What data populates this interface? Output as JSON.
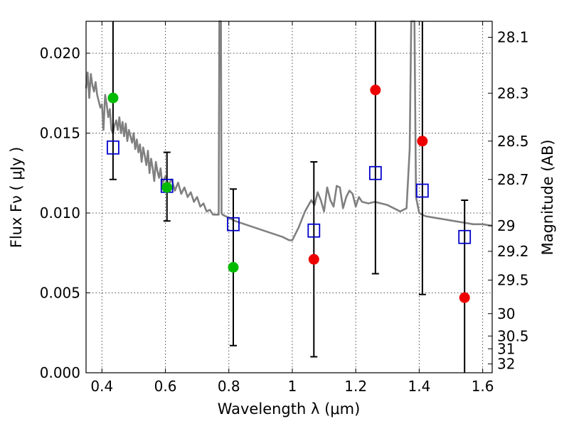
{
  "chart_data": {
    "type": "scatter",
    "title": "",
    "xlabel": "Wavelength  λ (μm)",
    "ylabel": "Flux  Fν  ( μJy )",
    "y2label": "Magnitude (AB)",
    "xlim": [
      0.35,
      1.63
    ],
    "ylim": [
      0.0,
      0.022
    ],
    "grid": true,
    "x_ticks": [
      0.4,
      0.6,
      0.8,
      1.0,
      1.2,
      1.4,
      1.6
    ],
    "x_tick_labels": [
      "0.4",
      "0.6",
      "0.8",
      "1",
      "1.2",
      "1.4",
      "1.6"
    ],
    "y_ticks": [
      0.0,
      0.005,
      0.01,
      0.015,
      0.02
    ],
    "y_tick_labels": [
      "0.000",
      "0.005",
      "0.010",
      "0.015",
      "0.020"
    ],
    "y2_ticks": [
      {
        "label": "28.1",
        "flux": 0.021
      },
      {
        "label": "28.3",
        "flux": 0.0175
      },
      {
        "label": "28.5",
        "flux": 0.0145
      },
      {
        "label": "28.7",
        "flux": 0.0121
      },
      {
        "label": "29",
        "flux": 0.0092
      },
      {
        "label": "29.2",
        "flux": 0.0076
      },
      {
        "label": "29.5",
        "flux": 0.0058
      },
      {
        "label": "30",
        "flux": 0.0037
      },
      {
        "label": "30.5",
        "flux": 0.0023
      },
      {
        "label": "31",
        "flux": 0.0015
      },
      {
        "label": "32",
        "flux": 0.00055
      }
    ],
    "model_spectrum": {
      "color": "#808080",
      "points": [
        [
          0.35,
          0.0178
        ],
        [
          0.355,
          0.0188
        ],
        [
          0.36,
          0.0172
        ],
        [
          0.365,
          0.0187
        ],
        [
          0.37,
          0.018
        ],
        [
          0.375,
          0.0176
        ],
        [
          0.38,
          0.0182
        ],
        [
          0.385,
          0.0174
        ],
        [
          0.39,
          0.017
        ],
        [
          0.395,
          0.0166
        ],
        [
          0.4,
          0.0168
        ],
        [
          0.405,
          0.0152
        ],
        [
          0.41,
          0.0174
        ],
        [
          0.415,
          0.0168
        ],
        [
          0.42,
          0.016
        ],
        [
          0.425,
          0.0165
        ],
        [
          0.43,
          0.0152
        ],
        [
          0.435,
          0.015
        ],
        [
          0.44,
          0.0155
        ],
        [
          0.445,
          0.0158
        ],
        [
          0.45,
          0.0152
        ],
        [
          0.455,
          0.016
        ],
        [
          0.46,
          0.015
        ],
        [
          0.465,
          0.0157
        ],
        [
          0.47,
          0.0148
        ],
        [
          0.475,
          0.0156
        ],
        [
          0.48,
          0.0145
        ],
        [
          0.485,
          0.0152
        ],
        [
          0.49,
          0.0148
        ],
        [
          0.495,
          0.0144
        ],
        [
          0.5,
          0.015
        ],
        [
          0.505,
          0.014
        ],
        [
          0.51,
          0.0146
        ],
        [
          0.515,
          0.0138
        ],
        [
          0.52,
          0.0143
        ],
        [
          0.525,
          0.0132
        ],
        [
          0.53,
          0.0141
        ],
        [
          0.535,
          0.0136
        ],
        [
          0.54,
          0.013
        ],
        [
          0.545,
          0.0139
        ],
        [
          0.55,
          0.0125
        ],
        [
          0.555,
          0.0134
        ],
        [
          0.56,
          0.0128
        ],
        [
          0.565,
          0.012
        ],
        [
          0.57,
          0.0132
        ],
        [
          0.575,
          0.0126
        ],
        [
          0.58,
          0.0122
        ],
        [
          0.585,
          0.0128
        ],
        [
          0.59,
          0.0118
        ],
        [
          0.6,
          0.0123
        ],
        [
          0.61,
          0.0118
        ],
        [
          0.62,
          0.0121
        ],
        [
          0.63,
          0.0114
        ],
        [
          0.64,
          0.0119
        ],
        [
          0.65,
          0.0112
        ],
        [
          0.66,
          0.0116
        ],
        [
          0.67,
          0.011
        ],
        [
          0.68,
          0.0113
        ],
        [
          0.69,
          0.0107
        ],
        [
          0.7,
          0.011
        ],
        [
          0.71,
          0.0104
        ],
        [
          0.72,
          0.0106
        ],
        [
          0.73,
          0.0101
        ],
        [
          0.74,
          0.0102
        ],
        [
          0.75,
          0.0099
        ],
        [
          0.76,
          0.0099
        ],
        [
          0.768,
          0.0099
        ],
        [
          0.77,
          0.024
        ],
        [
          0.775,
          0.024
        ],
        [
          0.777,
          0.01
        ],
        [
          0.78,
          0.0099
        ],
        [
          0.8,
          0.0097
        ],
        [
          0.82,
          0.0095
        ],
        [
          0.85,
          0.0093
        ],
        [
          0.88,
          0.0091
        ],
        [
          0.91,
          0.0089
        ],
        [
          0.94,
          0.0087
        ],
        [
          0.97,
          0.0085
        ],
        [
          0.99,
          0.0083
        ],
        [
          1.0,
          0.0083
        ],
        [
          1.02,
          0.0091
        ],
        [
          1.04,
          0.0101
        ],
        [
          1.06,
          0.0108
        ],
        [
          1.07,
          0.0105
        ],
        [
          1.08,
          0.0113
        ],
        [
          1.09,
          0.0108
        ],
        [
          1.1,
          0.0101
        ],
        [
          1.11,
          0.0116
        ],
        [
          1.12,
          0.0108
        ],
        [
          1.13,
          0.0104
        ],
        [
          1.14,
          0.0117
        ],
        [
          1.15,
          0.0116
        ],
        [
          1.16,
          0.0103
        ],
        [
          1.17,
          0.011
        ],
        [
          1.18,
          0.0114
        ],
        [
          1.19,
          0.0112
        ],
        [
          1.2,
          0.0104
        ],
        [
          1.21,
          0.011
        ],
        [
          1.22,
          0.0107
        ],
        [
          1.24,
          0.0106
        ],
        [
          1.26,
          0.0107
        ],
        [
          1.28,
          0.0106
        ],
        [
          1.3,
          0.0105
        ],
        [
          1.32,
          0.0103
        ],
        [
          1.34,
          0.0101
        ],
        [
          1.36,
          0.0103
        ],
        [
          1.37,
          0.014
        ],
        [
          1.375,
          0.024
        ],
        [
          1.385,
          0.024
        ],
        [
          1.39,
          0.011
        ],
        [
          1.4,
          0.01
        ],
        [
          1.42,
          0.0098
        ],
        [
          1.45,
          0.0097
        ],
        [
          1.48,
          0.0096
        ],
        [
          1.51,
          0.0095
        ],
        [
          1.54,
          0.0094
        ],
        [
          1.57,
          0.0093
        ],
        [
          1.6,
          0.0093
        ],
        [
          1.63,
          0.0092
        ]
      ]
    },
    "model_photometry": {
      "color": "#0000cc",
      "marker": "open-square",
      "points": [
        {
          "x": 0.435,
          "y": 0.0141
        },
        {
          "x": 0.605,
          "y": 0.0117
        },
        {
          "x": 0.814,
          "y": 0.0093
        },
        {
          "x": 1.068,
          "y": 0.0089
        },
        {
          "x": 1.262,
          "y": 0.0125
        },
        {
          "x": 1.41,
          "y": 0.0114
        },
        {
          "x": 1.543,
          "y": 0.0085
        }
      ]
    },
    "detections": {
      "color": "#00bb00",
      "marker": "filled-circle",
      "points": [
        {
          "x": 0.435,
          "y": 0.0172
        },
        {
          "x": 0.605,
          "y": 0.0116
        },
        {
          "x": 0.814,
          "y": 0.0066
        }
      ]
    },
    "upper_limits": {
      "color": "#ee0000",
      "marker": "filled-circle",
      "points": [
        {
          "x": 1.068,
          "y": 0.0071
        },
        {
          "x": 1.262,
          "y": 0.0177
        },
        {
          "x": 1.41,
          "y": 0.0145
        },
        {
          "x": 1.543,
          "y": 0.0047
        }
      ]
    },
    "error_bars": {
      "color": "#000000",
      "bars": [
        {
          "x": 0.435,
          "low": 0.0121,
          "high": 0.022,
          "cap_low": true,
          "cap_high": false
        },
        {
          "x": 0.605,
          "low": 0.0095,
          "high": 0.0138,
          "cap_low": true,
          "cap_high": true
        },
        {
          "x": 0.814,
          "low": 0.0017,
          "high": 0.0115,
          "cap_low": true,
          "cap_high": true
        },
        {
          "x": 1.068,
          "low": 0.001,
          "high": 0.0132,
          "cap_low": true,
          "cap_high": true
        },
        {
          "x": 1.262,
          "low": 0.0062,
          "high": 0.022,
          "cap_low": true,
          "cap_high": false
        },
        {
          "x": 1.41,
          "low": 0.0049,
          "high": 0.022,
          "cap_low": true,
          "cap_high": false
        },
        {
          "x": 1.543,
          "low": 0.0,
          "high": 0.0108,
          "cap_low": false,
          "cap_high": true
        }
      ]
    }
  }
}
